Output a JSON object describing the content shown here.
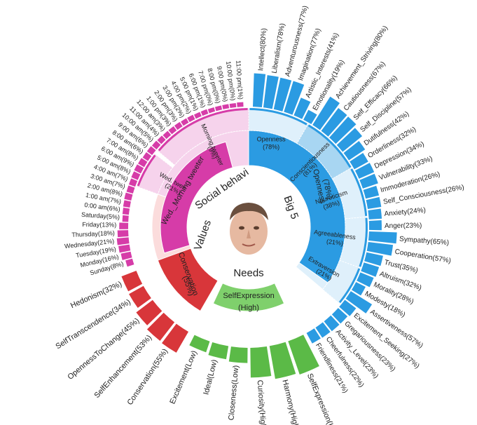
{
  "chart_data": {
    "type": "sunburst",
    "center_image": "portrait-photo",
    "colors": {
      "big5_dark": "#2b9be2",
      "big5_light": "#dff0fb",
      "big5_mid": "#a8d6f2",
      "social_dark": "#d63ca8",
      "social_light": "#f6d3ec",
      "social_mid": "#ee9fd6",
      "values_dark": "#d8363a",
      "values_light": "#fbdcdc",
      "needs_dark": "#5bba47",
      "needs_mid": "#7fd06c"
    },
    "inner": [
      {
        "key": "big5",
        "label": "Big 5"
      },
      {
        "key": "needs",
        "label": "Needs"
      },
      {
        "key": "values",
        "label": "Values"
      },
      {
        "key": "social",
        "label": "Social behavi"
      }
    ],
    "middle": [
      {
        "label": "Openness",
        "sub": "(78%)"
      },
      {
        "label": "SelfExpression",
        "sub": "(High)"
      },
      {
        "label": "Conservation",
        "sub": "(55%)"
      },
      {
        "label": "Wed._Morning tweeter",
        "sub": ""
      }
    ],
    "ring2": [
      {
        "label": "Openness",
        "sub": "(78%)"
      },
      {
        "label": "Conscientiousness",
        "sub": "(81%)"
      },
      {
        "label": "Neuroticism",
        "sub": "(38%)"
      },
      {
        "label": "Agreeableness",
        "sub": "(21%)"
      },
      {
        "label": "Extraversion",
        "sub": "(21%)"
      },
      {
        "label": "Morning tweeter",
        "sub": "(9%)"
      },
      {
        "label": "Wed. twee",
        "sub": "(21%)"
      }
    ],
    "big5_facets": [
      {
        "label": "Intellect(80%)",
        "value": 80
      },
      {
        "label": "Liberalism(78%)",
        "value": 78
      },
      {
        "label": "Adventurousness(77%)",
        "value": 77
      },
      {
        "label": "Imagination(77%)",
        "value": 77
      },
      {
        "label": "Artistic_Interests(41%)",
        "value": 41
      },
      {
        "label": "Emotionality(19%)",
        "value": 19
      },
      {
        "label": "Achievement_Striving(80%)",
        "value": 80
      },
      {
        "label": "Cautiousness(67%)",
        "value": 67
      },
      {
        "label": "Self_Efficacy(66%)",
        "value": 66
      },
      {
        "label": "Self_Discipline(57%)",
        "value": 57
      },
      {
        "label": "Dutifulness(42%)",
        "value": 42
      },
      {
        "label": "Orderliness(32%)",
        "value": 32
      },
      {
        "label": "Depression(34%)",
        "value": 34
      },
      {
        "label": "Vulnerability(33%)",
        "value": 33
      },
      {
        "label": "Immoderation(26%)",
        "value": 26
      },
      {
        "label": "Self_Consciousness(26%)",
        "value": 26
      },
      {
        "label": "Anxiety(24%)",
        "value": 24
      },
      {
        "label": "Anger(23%)",
        "value": 23
      },
      {
        "label": "Sympathy(65%)",
        "value": 65
      },
      {
        "label": "Cooperation(57%)",
        "value": 57
      },
      {
        "label": "Trust(35%)",
        "value": 35
      },
      {
        "label": "Altruism(32%)",
        "value": 32
      },
      {
        "label": "Morality(28%)",
        "value": 28
      },
      {
        "label": "Modesty(18%)",
        "value": 18
      },
      {
        "label": "Assertiveness(57%)",
        "value": 57
      },
      {
        "label": "Excitement_Seeking(27%)",
        "value": 27
      },
      {
        "label": "Gregariousness(23%)",
        "value": 23
      },
      {
        "label": "Activity_Level(23%)",
        "value": 23
      },
      {
        "label": "Cheerfulness(22%)",
        "value": 22
      },
      {
        "label": "Friendliness(21%)",
        "value": 21
      }
    ],
    "needs_items": [
      {
        "label": "SelfExpression(High)",
        "value": 85
      },
      {
        "label": "Harmony(High)",
        "value": 80
      },
      {
        "label": "Curiosity(High)",
        "value": 70
      },
      {
        "label": "Closeness(Low)",
        "value": 30
      },
      {
        "label": "Ideal(Low)",
        "value": 25
      },
      {
        "label": "Excitement(Low)",
        "value": 20
      }
    ],
    "values_items": [
      {
        "label": "Conservation(55%)",
        "value": 55
      },
      {
        "label": "SelfEnhancement(53%)",
        "value": 53
      },
      {
        "label": "OpennessToChange(45%)",
        "value": 45
      },
      {
        "label": "SelfTranscendence(34%)",
        "value": 34
      },
      {
        "label": "Hedonism(32%)",
        "value": 32
      }
    ],
    "social_items": [
      {
        "label": "Sunday(8%)",
        "value": 8
      },
      {
        "label": "Monday(16%)",
        "value": 16
      },
      {
        "label": "Tuesday(19%)",
        "value": 19
      },
      {
        "label": "Wednesday(21%)",
        "value": 21
      },
      {
        "label": "Thursday(18%)",
        "value": 18
      },
      {
        "label": "Friday(13%)",
        "value": 13
      },
      {
        "label": "Saturday(5%)",
        "value": 5
      },
      {
        "label": "0:00 am(6%)",
        "value": 6
      },
      {
        "label": "1:00 am(7%)",
        "value": 7
      },
      {
        "label": "2:00 am(8%)",
        "value": 8
      },
      {
        "label": "3:00 am(7%)",
        "value": 7
      },
      {
        "label": "4:00 am(7%)",
        "value": 7
      },
      {
        "label": "5:00 am(8%)",
        "value": 8
      },
      {
        "label": "6:00 am(9%)",
        "value": 9
      },
      {
        "label": "7:00 am(8%)",
        "value": 8
      },
      {
        "label": "8:00 am(6%)",
        "value": 6
      },
      {
        "label": "9:00 am(6%)",
        "value": 6
      },
      {
        "label": "10:00 am(5%)",
        "value": 5
      },
      {
        "label": "11:00 am(4%)",
        "value": 4
      },
      {
        "label": "12:00 am(3%)",
        "value": 3
      },
      {
        "label": "1:00 pm(3%)",
        "value": 3
      },
      {
        "label": "2:00 pm(3%)",
        "value": 3
      },
      {
        "label": "3:00 pm(2%)",
        "value": 2
      },
      {
        "label": "4:00 pm(2%)",
        "value": 2
      },
      {
        "label": "5:00 pm(1%)",
        "value": 1
      },
      {
        "label": "6:00 pm(1%)",
        "value": 1
      },
      {
        "label": "7:00 pm(0%)",
        "value": 0
      },
      {
        "label": "8:00 pm(0%)",
        "value": 0
      },
      {
        "label": "9:00 pm(0%)",
        "value": 0
      },
      {
        "label": "10:00 pm(0%)",
        "value": 0
      },
      {
        "label": "11:00 pm(1%)",
        "value": 1
      }
    ]
  }
}
